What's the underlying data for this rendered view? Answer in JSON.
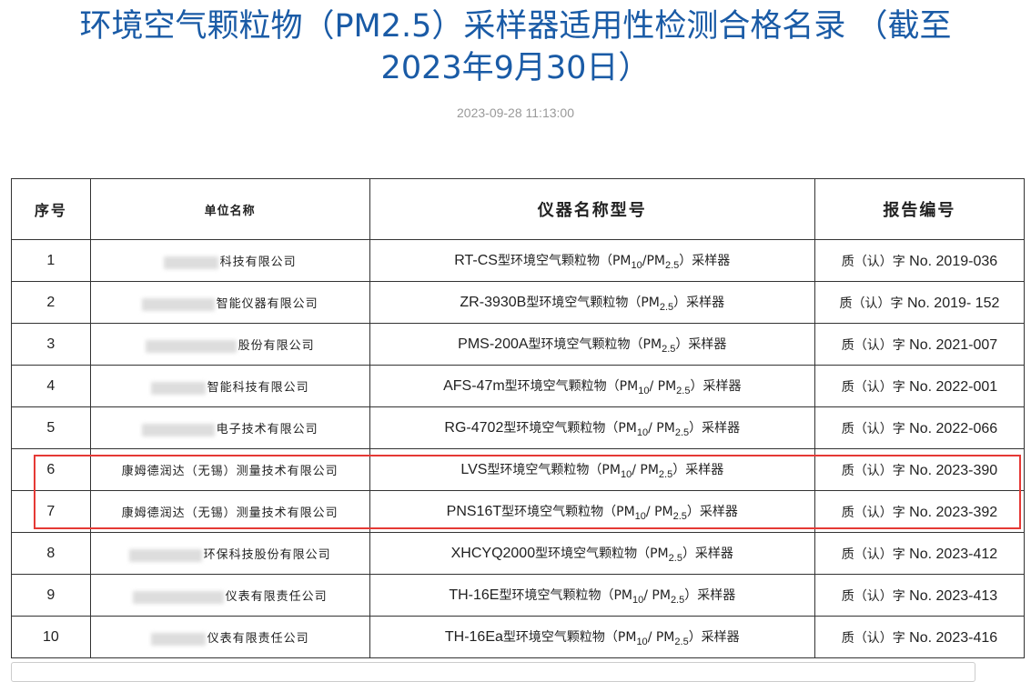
{
  "title_line1": "环境空气颗粒物（PM2.5）采样器适用性检测合格名录 （截至",
  "title_line2": "2023年9月30日）",
  "date": "2023-09-28 11:13:00",
  "headers": [
    "序号",
    "单位名称",
    "仪器名称型号",
    "报告编号"
  ],
  "highlight_color": "#e53935",
  "rows": [
    {
      "no": "1",
      "unit": "科技有限公司",
      "unit_redacted": true,
      "model": "RT-CS",
      "inst": [
        {
          "t": "型环境空气颗粒物（PM"
        },
        {
          "s": "10"
        },
        {
          "t": "/PM"
        },
        {
          "s": "2.5"
        },
        {
          "t": "）采样器"
        }
      ],
      "rep_prefix": "质（认）字",
      "rep": "No. 2019-036"
    },
    {
      "no": "2",
      "unit": "智能仪器有限公司",
      "unit_redacted": true,
      "model": "ZR-3930B",
      "inst": [
        {
          "t": "型环境空气颗粒物（PM"
        },
        {
          "s": "2.5"
        },
        {
          "t": "）采样器"
        }
      ],
      "rep_prefix": "质（认）字",
      "rep": "No. 2019- 152"
    },
    {
      "no": "3",
      "unit": "股份有限公司",
      "unit_redacted": true,
      "model": "PMS-200A",
      "inst": [
        {
          "t": "型环境空气颗粒物（PM"
        },
        {
          "s": "2.5"
        },
        {
          "t": "）采样器"
        }
      ],
      "rep_prefix": "质（认）字",
      "rep": "No. 2021-007"
    },
    {
      "no": "4",
      "unit": "智能科技有限公司",
      "unit_redacted": true,
      "model": "AFS-47m",
      "inst": [
        {
          "t": "型环境空气颗粒物（PM"
        },
        {
          "s": "10"
        },
        {
          "t": "/ PM"
        },
        {
          "s": "2.5"
        },
        {
          "t": "）采样器"
        }
      ],
      "rep_prefix": "质（认）字",
      "rep": "No. 2022-001"
    },
    {
      "no": "5",
      "unit": "电子技术有限公司",
      "unit_redacted": true,
      "model": "RG-4702",
      "inst": [
        {
          "t": "型环境空气颗粒物（PM"
        },
        {
          "s": "10"
        },
        {
          "t": "/ PM"
        },
        {
          "s": "2.5"
        },
        {
          "t": "）采样器"
        }
      ],
      "rep_prefix": "质（认）字",
      "rep": "No. 2022-066"
    },
    {
      "no": "6",
      "unit": "康姆德润达（无锡）测量技术有限公司",
      "unit_redacted": false,
      "model": "LVS",
      "inst": [
        {
          "t": "型环境空气颗粒物（PM"
        },
        {
          "s": "10"
        },
        {
          "t": "/ PM"
        },
        {
          "s": "2.5"
        },
        {
          "t": "）采样器"
        }
      ],
      "rep_prefix": "质（认）字",
      "rep": "No. 2023-390"
    },
    {
      "no": "7",
      "unit": "康姆德润达（无锡）测量技术有限公司",
      "unit_redacted": false,
      "model": "PNS16T",
      "inst": [
        {
          "t": "型环境空气颗粒物（PM"
        },
        {
          "s": "10"
        },
        {
          "t": "/ PM"
        },
        {
          "s": "2.5"
        },
        {
          "t": "）采样器"
        }
      ],
      "rep_prefix": "质（认）字",
      "rep": "No. 2023-392"
    },
    {
      "no": "8",
      "unit": "环保科技股份有限公司",
      "unit_redacted": true,
      "model": "XHCYQ2000",
      "inst": [
        {
          "t": "型环境空气颗粒物（PM"
        },
        {
          "s": "2.5"
        },
        {
          "t": "）采样器"
        }
      ],
      "rep_prefix": "质（认）字",
      "rep": "No. 2023-412"
    },
    {
      "no": "9",
      "unit": "仪表有限责任公司",
      "unit_redacted": true,
      "model": "TH-16E",
      "inst": [
        {
          "t": "型环境空气颗粒物（PM"
        },
        {
          "s": "10"
        },
        {
          "t": "/ PM"
        },
        {
          "s": "2.5"
        },
        {
          "t": "）采样器"
        }
      ],
      "rep_prefix": "质（认）字",
      "rep": "No. 2023-413"
    },
    {
      "no": "10",
      "unit": "仪表有限责任公司",
      "unit_redacted": true,
      "model": "TH-16Ea",
      "inst": [
        {
          "t": "型环境空气颗粒物（PM"
        },
        {
          "s": "10"
        },
        {
          "t": "/ PM"
        },
        {
          "s": "2.5"
        },
        {
          "t": "）采样器"
        }
      ],
      "rep_prefix": "质（认）字",
      "rep": "No. 2023-416"
    }
  ]
}
